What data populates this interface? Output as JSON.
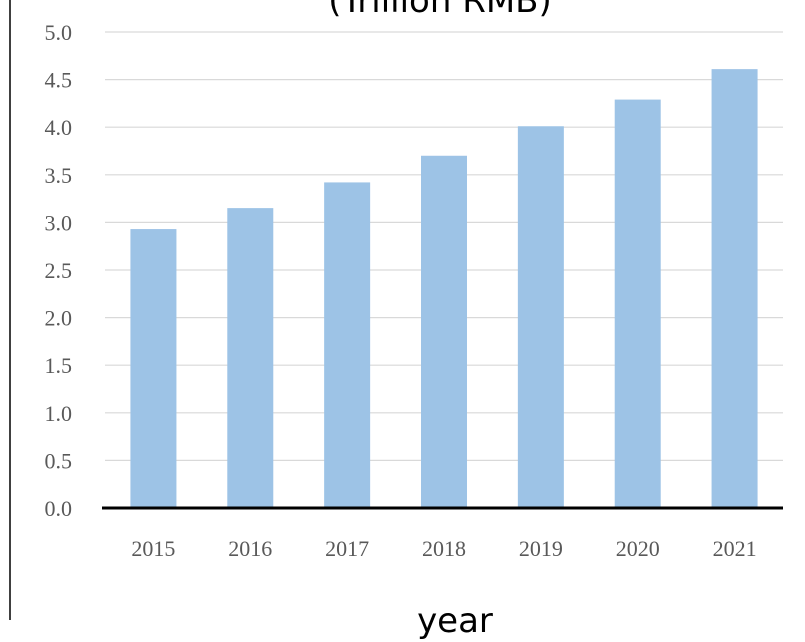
{
  "chart_data": {
    "type": "bar",
    "title": "(Trillion RMB)",
    "xlabel": "year",
    "ylabel": "",
    "categories": [
      "2015",
      "2016",
      "2017",
      "2018",
      "2019",
      "2020",
      "2021"
    ],
    "values": [
      2.93,
      3.15,
      3.42,
      3.7,
      4.01,
      4.29,
      4.61
    ],
    "ylim": [
      0,
      5.0
    ],
    "yticks": [
      "0.0",
      "0.5",
      "1.0",
      "1.5",
      "2.0",
      "2.5",
      "3.0",
      "3.5",
      "4.0",
      "4.5",
      "5.0"
    ],
    "grid": true,
    "legend": "none",
    "colors": {
      "bar": "#9DC3E6",
      "grid": "#D9D9D9",
      "axis": "#000000",
      "tick_text": "#595959"
    }
  }
}
